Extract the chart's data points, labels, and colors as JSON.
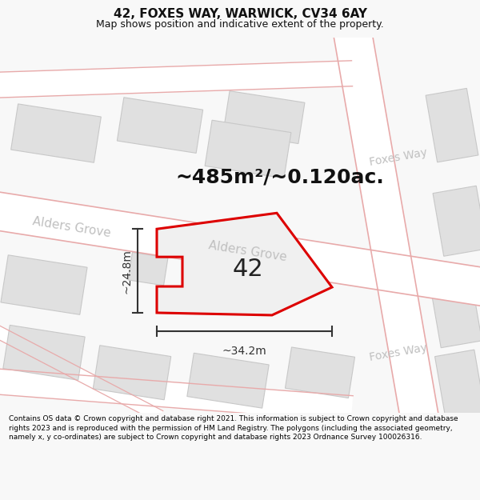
{
  "title": "42, FOXES WAY, WARWICK, CV34 6AY",
  "subtitle": "Map shows position and indicative extent of the property.",
  "footer": "Contains OS data © Crown copyright and database right 2021. This information is subject to Crown copyright and database rights 2023 and is reproduced with the permission of HM Land Registry. The polygons (including the associated geometry, namely x, y co-ordinates) are subject to Crown copyright and database rights 2023 Ordnance Survey 100026316.",
  "area_label": "~485m²/~0.120ac.",
  "number_label": "42",
  "width_label": "~34.2m",
  "height_label": "~24.8m",
  "bg_color": "#f8f8f8",
  "map_bg": "#f5f5f5",
  "road_fill": "#ffffff",
  "road_edge": "#e8aaaa",
  "block_color": "#e0e0e0",
  "block_stroke": "#c8c8c8",
  "plot_color": "#dd0000",
  "plot_fill": "#f0f0f0",
  "street_label_color": "#c0c0c0",
  "dim_color": "#333333",
  "title_fontsize": 11,
  "subtitle_fontsize": 9,
  "footer_fontsize": 6.5,
  "area_fontsize": 18,
  "number_fontsize": 22,
  "street_fontsize": 11,
  "dim_fontsize": 10
}
